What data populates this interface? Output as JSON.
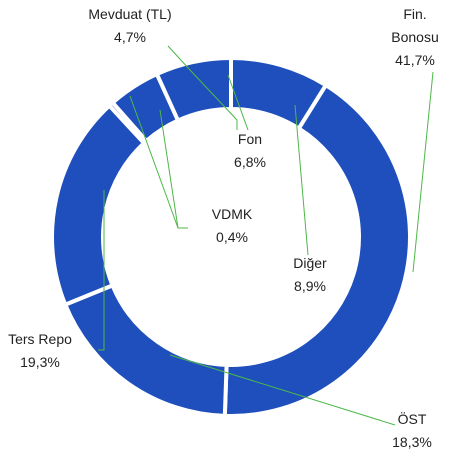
{
  "chart_data": {
    "type": "donut",
    "categories": [
      "Diğer",
      "Fin. Bonosu",
      "ÖST",
      "Ters Repo",
      "VDMK",
      "Mevduat (TL)",
      "Fon"
    ],
    "values": [
      8.9,
      41.7,
      18.3,
      19.3,
      0.4,
      4.7,
      6.8
    ],
    "value_labels": [
      "8,9%",
      "41,7%",
      "18,3%",
      "19,3%",
      "0,4%",
      "4,7%",
      "6,8%"
    ],
    "color": "#1f4fbd"
  }
}
